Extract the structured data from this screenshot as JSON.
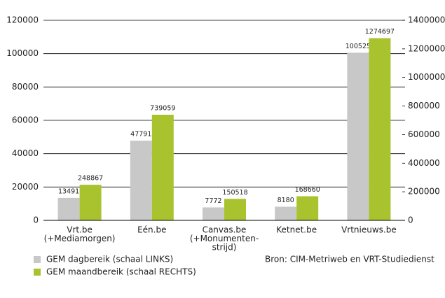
{
  "chart_data": {
    "type": "bar",
    "categories": [
      [
        "Vrt.be",
        "(+Mediamorgen)"
      ],
      [
        "Eén.be"
      ],
      [
        "Canvas.be",
        "(+Monumenten-",
        "strijd)"
      ],
      [
        "Ketnet.be"
      ],
      [
        "Vrtnieuws.be"
      ]
    ],
    "series": [
      {
        "name": "GEM dagbereik (schaal LINKS)",
        "color": "#c8c8c8",
        "axis": "y",
        "values": [
          13491,
          47791,
          7772,
          8180,
          100525
        ]
      },
      {
        "name": "GEM maandbereik (schaal RECHTS)",
        "color": "#a8c32e",
        "axis": "y2",
        "values": [
          248867,
          739059,
          150518,
          168660,
          1274697
        ]
      }
    ],
    "ylim": [
      0,
      120000
    ],
    "yticks": [
      0,
      20000,
      40000,
      60000,
      80000,
      100000,
      120000
    ],
    "y2lim": [
      0,
      1400000
    ],
    "y2ticks": [
      0,
      200000,
      400000,
      600000,
      800000,
      1000000,
      1200000,
      1400000
    ],
    "grid": true,
    "source": "Bron: CIM-Metriweb en VRT-Studiedienst"
  }
}
